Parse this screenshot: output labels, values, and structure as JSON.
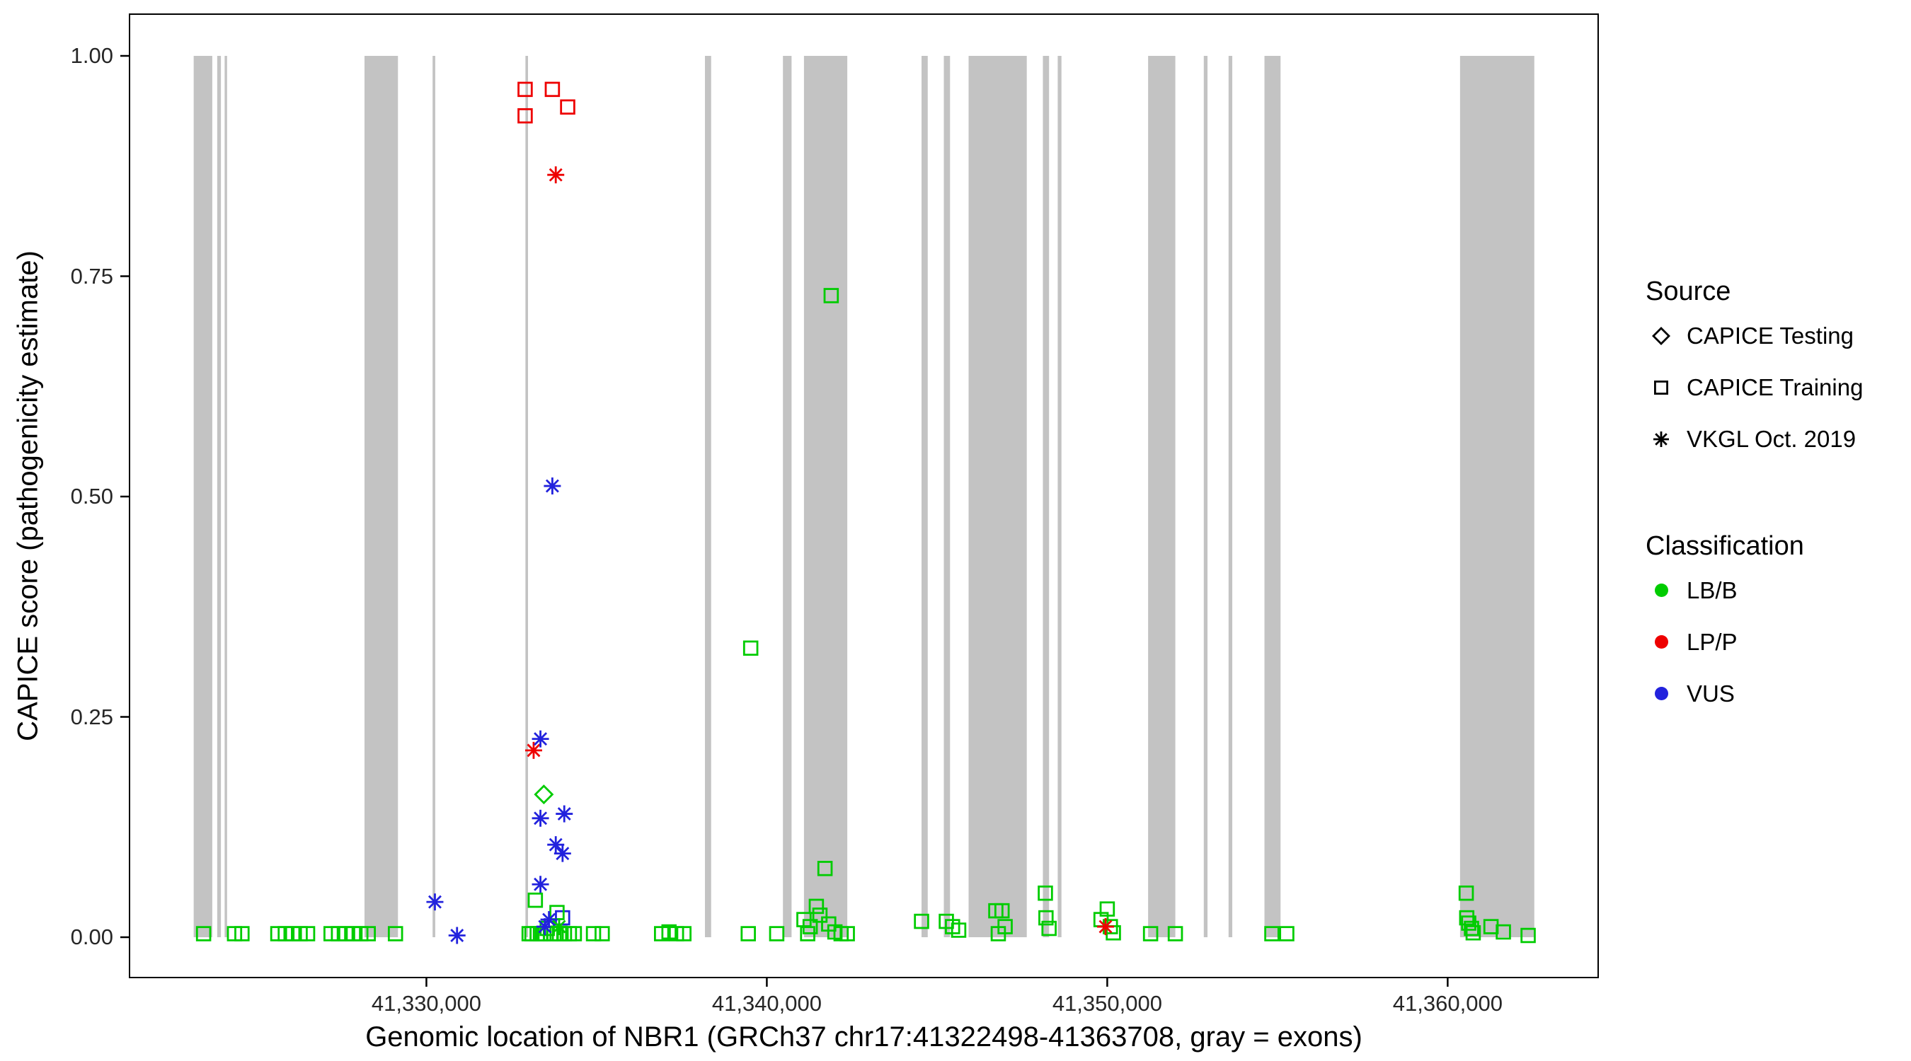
{
  "chart_data": {
    "type": "scatter",
    "title": "",
    "xlabel": "Genomic location of NBR1 (GRCh37 chr17:41322498-41363708, gray = exons)",
    "ylabel": "CAPICE score (pathogenicity estimate)",
    "x_domain": [
      41321300,
      41364400
    ],
    "y_domain": [
      0,
      1
    ],
    "x_ticks": [
      {
        "value": 41330000,
        "label": "41,330,000"
      },
      {
        "value": 41340000,
        "label": "41,340,000"
      },
      {
        "value": 41350000,
        "label": "41,350,000"
      },
      {
        "value": 41360000,
        "label": "41,360,000"
      }
    ],
    "y_ticks": [
      {
        "value": 0.0,
        "label": "0.00"
      },
      {
        "value": 0.25,
        "label": "0.25"
      },
      {
        "value": 0.5,
        "label": "0.50"
      },
      {
        "value": 0.75,
        "label": "0.75"
      },
      {
        "value": 1.0,
        "label": "1.00"
      }
    ],
    "grid": false,
    "legend_position": "right",
    "exon_color": "#c3c3c3",
    "exons": [
      [
        41323164,
        41323710
      ],
      [
        41323855,
        41323964
      ],
      [
        41324073,
        41324145
      ],
      [
        41328182,
        41329164
      ],
      [
        41330182,
        41330260
      ],
      [
        41332909,
        41332985
      ],
      [
        41338182,
        41338364
      ],
      [
        41340473,
        41340727
      ],
      [
        41341091,
        41342364
      ],
      [
        41344545,
        41344727
      ],
      [
        41345200,
        41345382
      ],
      [
        41345927,
        41347636
      ],
      [
        41348109,
        41348291
      ],
      [
        41348545,
        41348655
      ],
      [
        41351200,
        41352000
      ],
      [
        41352836,
        41352945
      ],
      [
        41353564,
        41353673
      ],
      [
        41354618,
        41355091
      ],
      [
        41360364,
        41362545
      ]
    ],
    "classification_colors": {
      "LB/B": "#00cc00",
      "LP/P": "#ee0000",
      "VUS": "#2222dd"
    },
    "shape_by_source": {
      "CAPICE Testing": "diamond",
      "CAPICE Training": "square",
      "VKGL Oct. 2019": "asterisk"
    },
    "series": [
      {
        "source": "CAPICE Testing",
        "classification": "LB/B",
        "shape": "diamond",
        "points": [
          [
            41333450,
            0.162
          ]
        ]
      },
      {
        "source": "CAPICE Training",
        "classification": "LP/P",
        "shape": "square",
        "points": [
          [
            41332900,
            0.962
          ],
          [
            41333700,
            0.962
          ],
          [
            41332900,
            0.932
          ],
          [
            41334150,
            0.942
          ]
        ]
      },
      {
        "source": "CAPICE Training",
        "classification": "VUS",
        "shape": "square",
        "points": [
          [
            41334000,
            0.022
          ]
        ]
      },
      {
        "source": "CAPICE Training",
        "classification": "LB/B",
        "shape": "square",
        "points": [
          [
            41323455,
            0.004
          ],
          [
            41324364,
            0.004
          ],
          [
            41324582,
            0.004
          ],
          [
            41325636,
            0.004
          ],
          [
            41325855,
            0.004
          ],
          [
            41326073,
            0.004
          ],
          [
            41326291,
            0.004
          ],
          [
            41326509,
            0.004
          ],
          [
            41327200,
            0.004
          ],
          [
            41327418,
            0.004
          ],
          [
            41327636,
            0.004
          ],
          [
            41327855,
            0.004
          ],
          [
            41328073,
            0.004
          ],
          [
            41328291,
            0.004
          ],
          [
            41329091,
            0.004
          ],
          [
            41333018,
            0.004
          ],
          [
            41333100,
            0.004
          ],
          [
            41333200,
            0.042
          ],
          [
            41333255,
            0.004
          ],
          [
            41333350,
            0.004
          ],
          [
            41333450,
            0.004
          ],
          [
            41333550,
            0.01
          ],
          [
            41333650,
            0.004
          ],
          [
            41333750,
            0.004
          ],
          [
            41333836,
            0.028
          ],
          [
            41333909,
            0.004
          ],
          [
            41334055,
            0.004
          ],
          [
            41334200,
            0.004
          ],
          [
            41334345,
            0.004
          ],
          [
            41334909,
            0.004
          ],
          [
            41335164,
            0.004
          ],
          [
            41336909,
            0.004
          ],
          [
            41337127,
            0.006
          ],
          [
            41337345,
            0.004
          ],
          [
            41337564,
            0.004
          ],
          [
            41339455,
            0.004
          ],
          [
            41339527,
            0.328
          ],
          [
            41340291,
            0.004
          ],
          [
            41341091,
            0.02
          ],
          [
            41341200,
            0.004
          ],
          [
            41341273,
            0.012
          ],
          [
            41341455,
            0.035
          ],
          [
            41341560,
            0.025
          ],
          [
            41341709,
            0.078
          ],
          [
            41341818,
            0.015
          ],
          [
            41341891,
            0.728
          ],
          [
            41342000,
            0.006
          ],
          [
            41342182,
            0.004
          ],
          [
            41342364,
            0.004
          ],
          [
            41344545,
            0.018
          ],
          [
            41345273,
            0.018
          ],
          [
            41345455,
            0.012
          ],
          [
            41345636,
            0.008
          ],
          [
            41346727,
            0.03
          ],
          [
            41346909,
            0.03
          ],
          [
            41347000,
            0.012
          ],
          [
            41346800,
            0.004
          ],
          [
            41348182,
            0.05
          ],
          [
            41348200,
            0.022
          ],
          [
            41348291,
            0.01
          ],
          [
            41349818,
            0.02
          ],
          [
            41350000,
            0.032
          ],
          [
            41350091,
            0.012
          ],
          [
            41350180,
            0.005
          ],
          [
            41351273,
            0.004
          ],
          [
            41352000,
            0.004
          ],
          [
            41354836,
            0.004
          ],
          [
            41355273,
            0.004
          ],
          [
            41360545,
            0.05
          ],
          [
            41360560,
            0.022
          ],
          [
            41360618,
            0.016
          ],
          [
            41360700,
            0.01
          ],
          [
            41360750,
            0.005
          ],
          [
            41361273,
            0.012
          ],
          [
            41361636,
            0.006
          ],
          [
            41362364,
            0.002
          ]
        ]
      },
      {
        "source": "VKGL Oct. 2019",
        "classification": "LP/P",
        "shape": "asterisk",
        "points": [
          [
            41333800,
            0.865
          ],
          [
            41333150,
            0.212
          ],
          [
            41349950,
            0.012
          ]
        ]
      },
      {
        "source": "VKGL Oct. 2019",
        "classification": "VUS",
        "shape": "asterisk",
        "points": [
          [
            41333700,
            0.512
          ],
          [
            41333350,
            0.225
          ],
          [
            41333350,
            0.135
          ],
          [
            41334050,
            0.14
          ],
          [
            41333800,
            0.105
          ],
          [
            41334000,
            0.095
          ],
          [
            41333350,
            0.06
          ],
          [
            41330250,
            0.04
          ],
          [
            41330900,
            0.002
          ],
          [
            41333600,
            0.02
          ],
          [
            41333480,
            0.012
          ]
        ]
      },
      {
        "source": "VKGL Oct. 2019",
        "classification": "LB/B",
        "shape": "asterisk",
        "points": [
          [
            41333900,
            0.012
          ]
        ]
      }
    ]
  },
  "legend": {
    "source": {
      "title": "Source",
      "items": [
        {
          "label": "CAPICE Testing",
          "shape": "diamond"
        },
        {
          "label": "CAPICE Training",
          "shape": "square"
        },
        {
          "label": "VKGL Oct. 2019",
          "shape": "asterisk"
        }
      ]
    },
    "classification": {
      "title": "Classification",
      "items": [
        {
          "label": "LB/B",
          "classification": "LB/B"
        },
        {
          "label": "LP/P",
          "classification": "LP/P"
        },
        {
          "label": "VUS",
          "classification": "VUS"
        }
      ]
    }
  }
}
